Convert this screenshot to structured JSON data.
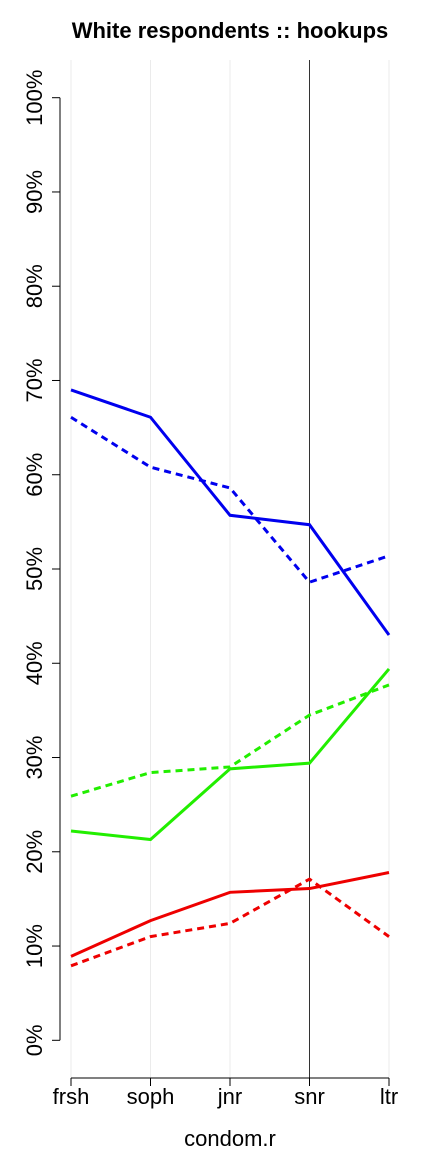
{
  "chart_data": {
    "type": "line",
    "title": "White respondents :: hookups",
    "x_label": "condom.r",
    "categories": [
      "frsh",
      "soph",
      "jnr",
      "snr",
      "ltr"
    ],
    "series": [
      {
        "color": "#0000ee",
        "dashed": false,
        "values": [
          69.0,
          66.1,
          55.7,
          54.7,
          43.0
        ]
      },
      {
        "color": "#0000ee",
        "dashed": true,
        "values": [
          66.1,
          60.8,
          58.6,
          48.6,
          51.4
        ]
      },
      {
        "color": "#22ee00",
        "dashed": false,
        "values": [
          22.2,
          21.3,
          28.8,
          29.4,
          39.4
        ]
      },
      {
        "color": "#22ee00",
        "dashed": true,
        "values": [
          25.9,
          28.4,
          29.0,
          34.5,
          37.7
        ]
      },
      {
        "color": "#ee0000",
        "dashed": false,
        "values": [
          8.9,
          12.7,
          15.7,
          16.1,
          17.8
        ]
      },
      {
        "color": "#ee0000",
        "dashed": true,
        "values": [
          7.9,
          11.0,
          12.4,
          17.1,
          11.0
        ]
      }
    ],
    "ylim": [
      -4,
      104
    ],
    "yticks": [
      {
        "value": 0,
        "label": "0%"
      },
      {
        "value": 10,
        "label": "10%"
      },
      {
        "value": 20,
        "label": "20%"
      },
      {
        "value": 30,
        "label": "30%"
      },
      {
        "value": 40,
        "label": "40%"
      },
      {
        "value": 50,
        "label": "50%"
      },
      {
        "value": 60,
        "label": "60%"
      },
      {
        "value": 70,
        "label": "70%"
      },
      {
        "value": 80,
        "label": "80%"
      },
      {
        "value": 90,
        "label": "90%"
      },
      {
        "value": 100,
        "label": "100%"
      }
    ],
    "grid": true,
    "vline_index": 3
  }
}
